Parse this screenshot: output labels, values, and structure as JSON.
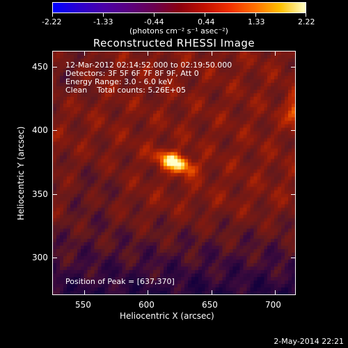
{
  "colorbar": {
    "ticks": [
      "-2.22",
      "-1.33",
      "-0.44",
      "0.44",
      "1.33",
      "2.22"
    ],
    "units_label": "(photons cm⁻² s⁻¹ asec⁻²)"
  },
  "title": "Reconstructed RHESSI Image",
  "info": {
    "time_range": "12-Mar-2012 02:14:52.000 to 02:19:50.000",
    "detectors": "Detectors: 3F 5F 6F 7F 8F 9F, Att 0",
    "energy": "Energy Range: 3.0 - 6.0 keV",
    "clean": "Clean    Total counts: 5.26E+05"
  },
  "peak_label": "Position of Peak = [637,370]",
  "axes": {
    "xlabel": "Heliocentric X (arcsec)",
    "ylabel": "Heliocentric Y (arcsec)",
    "xticks": [
      "550",
      "600",
      "650",
      "700"
    ],
    "yticks": [
      "450",
      "400",
      "350",
      "300"
    ]
  },
  "footer_date": "2-May-2014 22:21",
  "colors": {
    "background": "#000000",
    "text": "#ffffff"
  }
}
